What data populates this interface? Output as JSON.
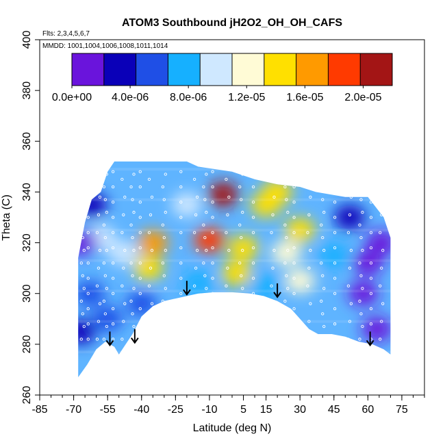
{
  "chart_data": {
    "type": "heatmap",
    "title": "ATOM3 Southbound jH2O2_OH_OH_CAFS",
    "subtitle_flights": "Flts: 2,3,4,5,6,7",
    "subtitle_dates": "MMDD: 1001,1004,1006,1008,1011,1014",
    "xlabel": "Latitude (deg N)",
    "ylabel": "Theta (C)",
    "xlim": [
      -85,
      85
    ],
    "ylim": [
      260,
      400
    ],
    "x_ticks": [
      -85,
      -70,
      -55,
      -40,
      -25,
      -10,
      5,
      15,
      30,
      45,
      60,
      75
    ],
    "x_tick_labels": [
      "-85",
      "-70",
      "-55",
      "-40",
      "-25",
      "-10",
      "5",
      "15",
      "30",
      "45",
      "60",
      "75"
    ],
    "x_minor_step": 5,
    "y_ticks": [
      260,
      280,
      300,
      320,
      340,
      360,
      380,
      400
    ],
    "y_tick_labels": [
      "260",
      "280",
      "300",
      "320",
      "340",
      "360",
      "380",
      "400"
    ],
    "colorbar": {
      "min": 0,
      "max": 2.2e-05,
      "n_bins": 10,
      "tick_values": [
        0,
        4e-06,
        8e-06,
        1.2e-05,
        1.6e-05,
        2e-05
      ],
      "tick_labels": [
        "0.0e+00",
        "4.0e-06",
        "8.0e-06",
        "1.2e-05",
        "1.6e-05",
        "2.0e-05"
      ],
      "colors": [
        "#6a14dc",
        "#0a00b8",
        "#1f4fe6",
        "#16b0ff",
        "#cfe8ff",
        "#fffbd6",
        "#ffe000",
        "#ff9a00",
        "#ff3a00",
        "#a31515"
      ]
    },
    "grid": false,
    "boundary_bottom": [
      [
        -68,
        267
      ],
      [
        -64,
        272
      ],
      [
        -60,
        278
      ],
      [
        -56,
        281
      ],
      [
        -52,
        279
      ],
      [
        -50,
        276
      ],
      [
        -44,
        284
      ],
      [
        -40,
        291
      ],
      [
        -35,
        295
      ],
      [
        -30,
        297
      ],
      [
        -25,
        298
      ],
      [
        -20,
        299
      ],
      [
        -15,
        300
      ],
      [
        -8,
        300.5
      ],
      [
        0,
        300.5
      ],
      [
        8,
        300
      ],
      [
        14,
        299
      ],
      [
        20,
        297
      ],
      [
        26,
        294
      ],
      [
        30,
        290
      ],
      [
        34,
        286
      ],
      [
        38,
        284
      ],
      [
        44,
        284
      ],
      [
        50,
        283
      ],
      [
        56,
        281
      ],
      [
        62,
        280
      ],
      [
        67,
        278
      ],
      [
        70,
        276
      ]
    ],
    "boundary_top": [
      [
        -68,
        314
      ],
      [
        -65,
        328
      ],
      [
        -62,
        337
      ],
      [
        -58,
        340
      ],
      [
        -55,
        348
      ],
      [
        -52,
        352
      ],
      [
        -45,
        352
      ],
      [
        -40,
        352
      ],
      [
        -20,
        352
      ],
      [
        -15,
        350
      ],
      [
        0,
        348
      ],
      [
        10,
        345
      ],
      [
        20,
        343
      ],
      [
        30,
        342
      ],
      [
        37,
        340
      ],
      [
        50,
        338
      ],
      [
        60,
        338
      ],
      [
        67,
        330
      ],
      [
        70,
        322
      ]
    ],
    "field_blobs": [
      {
        "lat": -35,
        "theta": 320,
        "value": 1.7e-05
      },
      {
        "lat": -37,
        "theta": 310,
        "value": 1.5e-05
      },
      {
        "lat": -10,
        "theta": 321,
        "value": 1.9e-05
      },
      {
        "lat": -4,
        "theta": 339,
        "value": 2.1e-05
      },
      {
        "lat": 5,
        "theta": 318,
        "value": 1.5e-05
      },
      {
        "lat": 2,
        "theta": 308,
        "value": 1.4e-05
      },
      {
        "lat": 20,
        "theta": 340,
        "value": 1.4e-05
      },
      {
        "lat": 24,
        "theta": 316,
        "value": 1.3e-05
      },
      {
        "lat": 30,
        "theta": 325,
        "value": 1.5e-05
      },
      {
        "lat": 15,
        "theta": 335,
        "value": 1.4e-05
      },
      {
        "lat": 30,
        "theta": 305,
        "value": 1.1e-05
      },
      {
        "lat": -20,
        "theta": 335,
        "value": 1e-05
      },
      {
        "lat": -58,
        "theta": 322,
        "value": 1e-05
      },
      {
        "lat": -48,
        "theta": 316,
        "value": 1e-05
      },
      {
        "lat": -63,
        "theta": 300,
        "value": 6e-06
      },
      {
        "lat": -55,
        "theta": 290,
        "value": 5e-06
      },
      {
        "lat": -40,
        "theta": 296,
        "value": 6e-06
      },
      {
        "lat": -15,
        "theta": 304,
        "value": 8e-06
      },
      {
        "lat": 15,
        "theta": 303,
        "value": 8e-06
      },
      {
        "lat": 45,
        "theta": 315,
        "value": 7e-06
      },
      {
        "lat": 52,
        "theta": 330,
        "value": 4e-06
      },
      {
        "lat": 58,
        "theta": 300,
        "value": 1e-06
      },
      {
        "lat": 64,
        "theta": 286,
        "value": 1e-06
      },
      {
        "lat": 66,
        "theta": 320,
        "value": 1e-06
      },
      {
        "lat": 60,
        "theta": 312,
        "value": 2e-06
      },
      {
        "lat": -66,
        "theta": 320,
        "value": 2e-06
      },
      {
        "lat": -62,
        "theta": 335,
        "value": 3e-06
      },
      {
        "lat": -67,
        "theta": 285,
        "value": 3e-06
      }
    ],
    "tropopause_arrows": [
      {
        "lat": -54,
        "theta": 285
      },
      {
        "lat": -43,
        "theta": 286
      },
      {
        "lat": -20,
        "theta": 305
      },
      {
        "lat": 20,
        "theta": 304
      },
      {
        "lat": 61,
        "theta": 285
      }
    ]
  }
}
